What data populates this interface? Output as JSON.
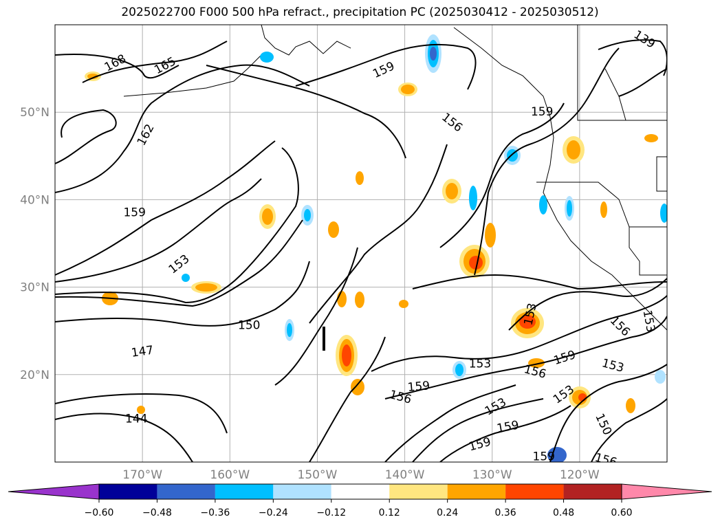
{
  "title": "2025022700 F000 500 hPa refract., precipitation PC (2025030412 - 2025030512)",
  "map": {
    "lat_ticks": [
      {
        "lat": 50,
        "label": "50°N"
      },
      {
        "lat": 40,
        "label": "40°N"
      },
      {
        "lat": 30,
        "label": "30°N"
      },
      {
        "lat": 20,
        "label": "20°N"
      }
    ],
    "lon_ticks": [
      {
        "lon": -170,
        "label": "170°W"
      },
      {
        "lon": -160,
        "label": "160°W"
      },
      {
        "lon": -150,
        "label": "150°W"
      },
      {
        "lon": -140,
        "label": "140°W"
      },
      {
        "lon": -130,
        "label": "130°W"
      },
      {
        "lon": -120,
        "label": "120°W"
      }
    ],
    "extent": {
      "lon_min": -180,
      "lon_max": -110,
      "lat_min": 10,
      "lat_max": 60
    },
    "contour_labels": [
      {
        "text": "168",
        "lon": -173.1,
        "lat": 55.6,
        "rot": -28
      },
      {
        "text": "165",
        "lon": -167.4,
        "lat": 55.3,
        "rot": -28
      },
      {
        "text": "162",
        "lon": -169.6,
        "lat": 47.4,
        "rot": -62
      },
      {
        "text": "159",
        "lon": -170.9,
        "lat": 38.5,
        "rot": 0
      },
      {
        "text": "153",
        "lon": -165.8,
        "lat": 32.6,
        "rot": -38
      },
      {
        "text": "150",
        "lon": -157.8,
        "lat": 25.6,
        "rot": 0
      },
      {
        "text": "147",
        "lon": -170.0,
        "lat": 22.6,
        "rot": -8
      },
      {
        "text": "144",
        "lon": -170.7,
        "lat": 14.9,
        "rot": 0
      },
      {
        "text": "159",
        "lon": -142.4,
        "lat": 54.8,
        "rot": -25
      },
      {
        "text": "156",
        "lon": -134.6,
        "lat": 48.8,
        "rot": 38
      },
      {
        "text": "159",
        "lon": -124.3,
        "lat": 50.0,
        "rot": 0
      },
      {
        "text": "139",
        "lon": -112.6,
        "lat": 58.3,
        "rot": 32
      },
      {
        "text": "153",
        "lon": -125.6,
        "lat": 26.9,
        "rot": -78
      },
      {
        "text": "153",
        "lon": -131.4,
        "lat": 21.2,
        "rot": 0
      },
      {
        "text": "156",
        "lon": -125.1,
        "lat": 20.3,
        "rot": 15
      },
      {
        "text": "159",
        "lon": -121.7,
        "lat": 21.9,
        "rot": -18
      },
      {
        "text": "153",
        "lon": -116.2,
        "lat": 21.0,
        "rot": 15
      },
      {
        "text": "156",
        "lon": -115.4,
        "lat": 25.5,
        "rot": 45
      },
      {
        "text": "153",
        "lon": -112.1,
        "lat": 26.1,
        "rot": 80
      },
      {
        "text": "159",
        "lon": -138.4,
        "lat": 18.6,
        "rot": -5
      },
      {
        "text": "156",
        "lon": -140.5,
        "lat": 17.4,
        "rot": 15
      },
      {
        "text": "153",
        "lon": -129.6,
        "lat": 16.3,
        "rot": -30
      },
      {
        "text": "159",
        "lon": -128.2,
        "lat": 14.0,
        "rot": -10
      },
      {
        "text": "159",
        "lon": -131.4,
        "lat": 12.0,
        "rot": -15
      },
      {
        "text": "153",
        "lon": -121.8,
        "lat": 17.7,
        "rot": -35
      },
      {
        "text": "150",
        "lon": -117.3,
        "lat": 14.3,
        "rot": 65
      },
      {
        "text": "156",
        "lon": -117.0,
        "lat": 10.2,
        "rot": 15
      },
      {
        "text": "159",
        "lon": -124.1,
        "lat": 10.6,
        "rot": 0
      }
    ]
  },
  "colorbar": {
    "ticks": [
      "−0.60",
      "−0.48",
      "−0.36",
      "−0.24",
      "−0.12",
      "0.12",
      "0.24",
      "0.36",
      "0.48",
      "0.60"
    ],
    "colors": [
      "#9933cc",
      "#000099",
      "#3366cc",
      "#00bfff",
      "#b0e2ff",
      "#ffffff",
      "#ffe680",
      "#ffa500",
      "#ff4500",
      "#b22222",
      "#ff88aa"
    ]
  }
}
